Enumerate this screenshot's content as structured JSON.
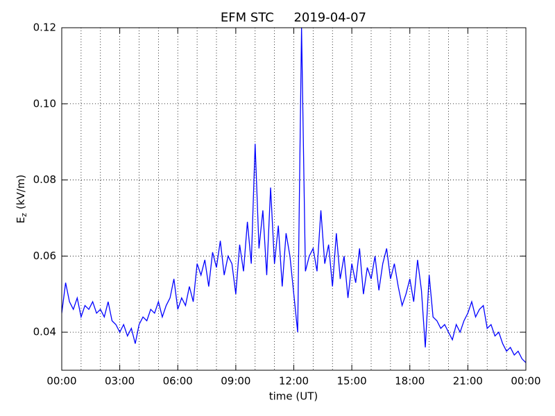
{
  "chart_data": {
    "type": "line",
    "title": "EFM STC     2019-04-07",
    "x_label": "time (UT)",
    "y_label": {
      "main": "E",
      "sub": "z",
      "unit": "(kV/m)"
    },
    "xlim": [
      0,
      24
    ],
    "xticks": [
      {
        "value": 0,
        "label": "00:00"
      },
      {
        "value": 3,
        "label": "03:00"
      },
      {
        "value": 6,
        "label": "06:00"
      },
      {
        "value": 9,
        "label": "09:00"
      },
      {
        "value": 12,
        "label": "12:00"
      },
      {
        "value": 15,
        "label": "15:00"
      },
      {
        "value": 18,
        "label": "18:00"
      },
      {
        "value": 21,
        "label": "21:00"
      },
      {
        "value": 24,
        "label": "00:00"
      }
    ],
    "x_minor_ticks": [
      1,
      2,
      4,
      5,
      7,
      8,
      10,
      11,
      13,
      14,
      16,
      17,
      19,
      20,
      22,
      23
    ],
    "ylim": [
      0.03,
      0.12
    ],
    "yticks": [
      0.04,
      0.06,
      0.08,
      {
        "value": 0.1,
        "label": "0.10"
      },
      0.12
    ],
    "grid": true,
    "x": [
      0,
      0.2,
      0.4,
      0.6,
      0.8,
      1,
      1.2,
      1.4,
      1.6,
      1.8,
      2,
      2.2,
      2.4,
      2.6,
      2.8,
      3,
      3.2,
      3.4,
      3.6,
      3.8,
      4,
      4.2,
      4.4,
      4.6,
      4.8,
      5,
      5.2,
      5.4,
      5.6,
      5.8,
      6,
      6.2,
      6.4,
      6.6,
      6.8,
      7,
      7.2,
      7.4,
      7.6,
      7.8,
      8,
      8.2,
      8.4,
      8.6,
      8.8,
      9,
      9.2,
      9.4,
      9.6,
      9.8,
      10,
      10.2,
      10.4,
      10.6,
      10.8,
      11,
      11.2,
      11.4,
      11.6,
      11.8,
      12,
      12.2,
      12.4,
      12.6,
      12.8,
      13,
      13.2,
      13.4,
      13.6,
      13.8,
      14,
      14.2,
      14.4,
      14.6,
      14.8,
      15,
      15.2,
      15.4,
      15.6,
      15.8,
      16,
      16.2,
      16.4,
      16.6,
      16.8,
      17,
      17.2,
      17.4,
      17.6,
      17.8,
      18,
      18.2,
      18.4,
      18.6,
      18.8,
      19,
      19.2,
      19.4,
      19.6,
      19.8,
      20,
      20.2,
      20.4,
      20.6,
      20.8,
      21,
      21.2,
      21.4,
      21.6,
      21.8,
      22,
      22.2,
      22.4,
      22.6,
      22.8,
      23,
      23.2,
      23.4,
      23.6,
      23.8,
      24
    ],
    "series": [
      {
        "color": "#0000ff",
        "values": [
          0.045,
          0.053,
          0.048,
          0.046,
          0.049,
          0.044,
          0.047,
          0.046,
          0.048,
          0.045,
          0.046,
          0.044,
          0.048,
          0.043,
          0.042,
          0.04,
          0.042,
          0.039,
          0.041,
          0.037,
          0.042,
          0.044,
          0.043,
          0.046,
          0.045,
          0.048,
          0.044,
          0.047,
          0.049,
          0.054,
          0.046,
          0.049,
          0.047,
          0.052,
          0.048,
          0.058,
          0.055,
          0.059,
          0.052,
          0.061,
          0.057,
          0.064,
          0.055,
          0.06,
          0.058,
          0.05,
          0.063,
          0.056,
          0.069,
          0.058,
          0.0895,
          0.062,
          0.072,
          0.055,
          0.078,
          0.058,
          0.068,
          0.052,
          0.066,
          0.06,
          0.05,
          0.04,
          0.12,
          0.056,
          0.06,
          0.062,
          0.056,
          0.072,
          0.058,
          0.063,
          0.052,
          0.066,
          0.054,
          0.06,
          0.049,
          0.058,
          0.053,
          0.062,
          0.05,
          0.057,
          0.054,
          0.06,
          0.051,
          0.058,
          0.062,
          0.054,
          0.058,
          0.052,
          0.047,
          0.05,
          0.054,
          0.048,
          0.059,
          0.051,
          0.036,
          0.055,
          0.044,
          0.043,
          0.041,
          0.042,
          0.04,
          0.038,
          0.042,
          0.04,
          0.043,
          0.045,
          0.048,
          0.044,
          0.046,
          0.047,
          0.041,
          0.042,
          0.039,
          0.04,
          0.037,
          0.035,
          0.036,
          0.034,
          0.035,
          0.033,
          0.032
        ]
      }
    ]
  }
}
